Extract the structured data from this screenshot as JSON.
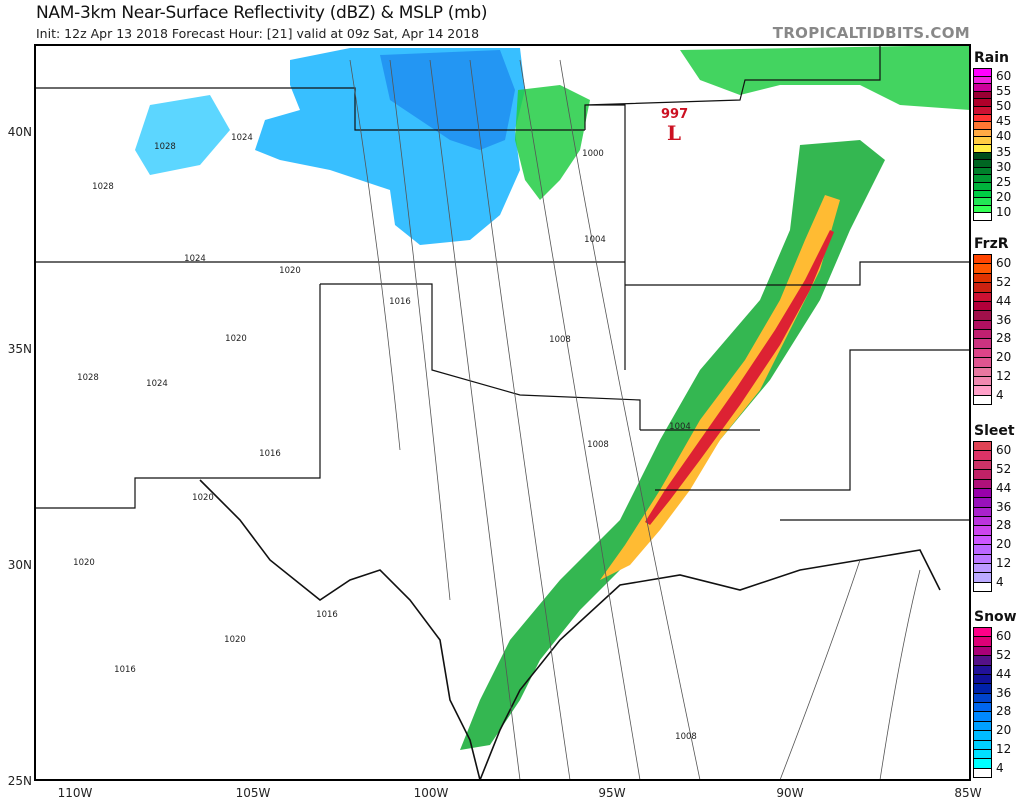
{
  "header": {
    "title": "NAM-3km Near-Surface Reflectivity (dBZ) & MSLP (mb)",
    "subtitle": "Init: 12z Apr 13 2018   Forecast Hour: [21]   valid at 09z Sat, Apr 14 2018",
    "watermark": "TROPICALTIDBITS.COM"
  },
  "map": {
    "lat_labels": [
      "40N",
      "35N",
      "30N",
      "25N"
    ],
    "lon_labels": [
      "110W",
      "105W",
      "100W",
      "95W",
      "90W",
      "85W"
    ],
    "low_center": {
      "symbol": "L",
      "pressure": "997",
      "color": "#cc1122"
    },
    "isobar_labels": [
      "1000",
      "1004",
      "1008",
      "1008",
      "1004",
      "1016",
      "1020",
      "1024",
      "1028",
      "1016",
      "1020",
      "1020",
      "1016",
      "1020",
      "1016",
      "1008",
      "1024",
      "1028",
      "1028",
      "1024",
      "1020"
    ]
  },
  "legends": [
    {
      "title": "Rain",
      "labels": [
        "60",
        "55",
        "50",
        "45",
        "40",
        "35",
        "30",
        "25",
        "20",
        "10"
      ],
      "colors": [
        "#ff00ff",
        "#ee22dd",
        "#cc0099",
        "#990033",
        "#b0002a",
        "#cc1133",
        "#ff3333",
        "#ff7733",
        "#ffaa44",
        "#ffcc44",
        "#ffee44",
        "#004d1a",
        "#006622",
        "#00802b",
        "#009933",
        "#00b33c",
        "#00cc44",
        "#22e655",
        "#33ff55",
        "#ffffff"
      ]
    },
    {
      "title": "FrzR",
      "labels": [
        "60",
        "52",
        "44",
        "36",
        "28",
        "20",
        "12",
        "4"
      ],
      "colors": [
        "#ff4400",
        "#ff5500",
        "#e03300",
        "#cc2211",
        "#cc1133",
        "#b3003a",
        "#a0104a",
        "#b01060",
        "#c02070",
        "#cc3380",
        "#dd4488",
        "#e05590",
        "#e877a0",
        "#f088b0",
        "#ffa0c8",
        "#ffffff"
      ]
    },
    {
      "title": "Sleet",
      "labels": [
        "60",
        "52",
        "44",
        "36",
        "28",
        "20",
        "12",
        "4"
      ],
      "colors": [
        "#e04455",
        "#dd3366",
        "#cc3366",
        "#c02266",
        "#b0117a",
        "#9900aa",
        "#9911bb",
        "#aa22cc",
        "#bb33dd",
        "#cc44ee",
        "#cc55ff",
        "#bb66ff",
        "#bb77ff",
        "#bb99ff",
        "#bbaaff",
        "#ffffff"
      ]
    },
    {
      "title": "Snow",
      "labels": [
        "60",
        "52",
        "44",
        "36",
        "28",
        "20",
        "12",
        "4"
      ],
      "colors": [
        "#ff0088",
        "#dd0077",
        "#aa0077",
        "#551188",
        "#221199",
        "#111199",
        "#0022aa",
        "#0044cc",
        "#0066ee",
        "#0088ff",
        "#00a0ff",
        "#00bbff",
        "#00d0ff",
        "#00e0ff",
        "#00ffff",
        "#ffffff"
      ]
    }
  ]
}
